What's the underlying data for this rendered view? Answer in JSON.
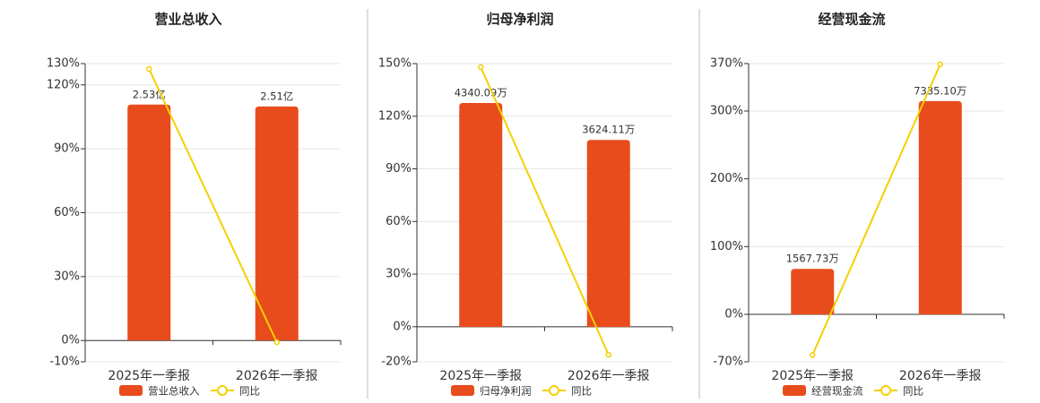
{
  "chart_data": [
    {
      "type": "bar",
      "title": "营业总收入",
      "categories": [
        "2025年一季报",
        "2026年一季报"
      ],
      "series": [
        {
          "name": "营业总收入",
          "color": "#e84c1c",
          "axis": "y2",
          "values": [
            2.53,
            2.51
          ],
          "value_labels": [
            "2.53亿",
            "2.51亿"
          ]
        },
        {
          "name": "同比",
          "color": "#f5d000",
          "type": "line",
          "values": [
            127.5,
            -0.8
          ]
        }
      ],
      "ylim": [
        -10,
        130
      ],
      "yticks": [
        {
          "value": -10,
          "label": "-10%"
        },
        {
          "value": 0,
          "label": "0%"
        },
        {
          "value": 30,
          "label": "30%"
        },
        {
          "value": 60,
          "label": "60%"
        },
        {
          "value": 90,
          "label": "90%"
        },
        {
          "value": 120,
          "label": "120%"
        },
        {
          "value": 130,
          "label": "130%"
        }
      ],
      "y2lim": [
        -0.23,
        2.97
      ],
      "grid": true
    },
    {
      "type": "bar",
      "title": "归母净利润",
      "categories": [
        "2025年一季报",
        "2026年一季报"
      ],
      "series": [
        {
          "name": "归母净利润",
          "color": "#e84c1c",
          "axis": "y2",
          "values": [
            4340.09,
            3624.11
          ],
          "value_labels": [
            "4340.09万",
            "3624.11万"
          ]
        },
        {
          "name": "同比",
          "color": "#f5d000",
          "type": "line",
          "values": [
            148,
            -16
          ]
        }
      ],
      "ylim": [
        -20,
        150
      ],
      "yticks": [
        {
          "value": -20,
          "label": "-20%"
        },
        {
          "value": 0,
          "label": "0%"
        },
        {
          "value": 30,
          "label": "30%"
        },
        {
          "value": 60,
          "label": "60%"
        },
        {
          "value": 90,
          "label": "90%"
        },
        {
          "value": 120,
          "label": "120%"
        },
        {
          "value": 150,
          "label": "150%"
        }
      ],
      "y2lim": [
        -675,
        5103
      ],
      "grid": true
    },
    {
      "type": "bar",
      "title": "经营现金流",
      "categories": [
        "2025年一季报",
        "2026年一季报"
      ],
      "series": [
        {
          "name": "经营现金流",
          "color": "#e84c1c",
          "axis": "y2",
          "values": [
            1567.73,
            7335.1
          ],
          "value_labels": [
            "1567.73万",
            "7335.10万"
          ]
        },
        {
          "name": "同比",
          "color": "#f5d000",
          "type": "line",
          "values": [
            -60,
            369
          ]
        }
      ],
      "ylim": [
        -70,
        370
      ],
      "yticks": [
        {
          "value": -70,
          "label": "-70%"
        },
        {
          "value": 0,
          "label": "0%"
        },
        {
          "value": 100,
          "label": "100%"
        },
        {
          "value": 200,
          "label": "200%"
        },
        {
          "value": 300,
          "label": "300%"
        },
        {
          "value": 370,
          "label": "370%"
        }
      ],
      "y2lim": [
        -1627,
        8625
      ],
      "grid": true
    }
  ]
}
